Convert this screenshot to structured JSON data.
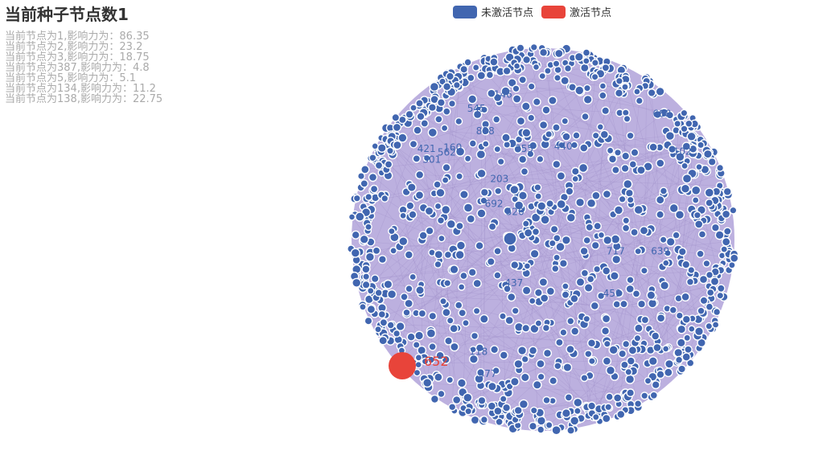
{
  "title": "当前种子节点数1",
  "subtitle_lines": [
    "当前节点为1,影响力为：86.35",
    "当前节点为2,影响力为：23.2",
    "当前节点为3,影响力为：18.75",
    "当前节点为387,影响力为：4.8",
    "当前节点为5,影响力为：5.1",
    "当前节点为134,影响力为：11.2",
    "当前节点为138,影响力为：22.75"
  ],
  "legend": [
    {
      "label": "未激活节点",
      "color": "#4166b0"
    },
    {
      "label": "激活节点",
      "color": "#e8443a"
    }
  ],
  "graph": {
    "edge_color": "#9b8ac6",
    "node_border": "#ffffff",
    "active_node_label": "652",
    "node_labels": [
      "102",
      "355",
      "459",
      "717",
      "692",
      "437",
      "421",
      "688",
      "545",
      "639",
      "146",
      "160",
      "520",
      "888",
      "301",
      "377",
      "562",
      "440",
      "203",
      "118"
    ]
  }
}
